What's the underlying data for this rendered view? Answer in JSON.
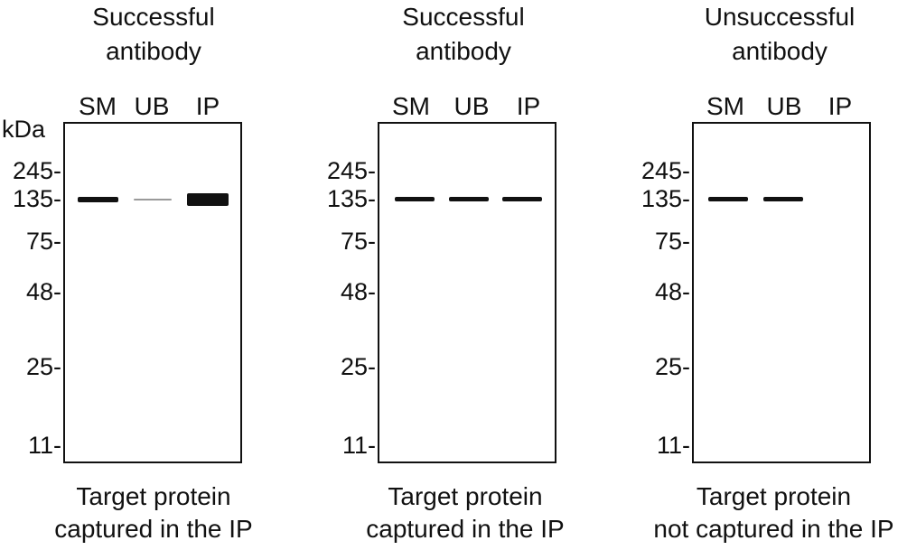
{
  "panels": [
    {
      "title": "Successful\nantibody",
      "lanes": [
        "SM",
        "UB",
        "IP"
      ],
      "kda_label": "kDa",
      "markers": [
        "245-",
        "135-",
        "75-",
        "48-",
        "25-",
        "11-"
      ],
      "bands": [
        {
          "lane": "SM",
          "marker": "135",
          "intensity": "strong"
        },
        {
          "lane": "UB",
          "marker": "135",
          "intensity": "faint"
        },
        {
          "lane": "IP",
          "marker": "135",
          "intensity": "very strong"
        }
      ],
      "caption": "Target protein\ncaptured in the IP"
    },
    {
      "title": "Successful\nantibody",
      "lanes": [
        "SM",
        "UB",
        "IP"
      ],
      "kda_label": "",
      "markers": [
        "245-",
        "135-",
        "75-",
        "48-",
        "25-",
        "11-"
      ],
      "bands": [
        {
          "lane": "SM",
          "marker": "135",
          "intensity": "strong"
        },
        {
          "lane": "UB",
          "marker": "135",
          "intensity": "strong"
        },
        {
          "lane": "IP",
          "marker": "135",
          "intensity": "strong"
        }
      ],
      "caption": "Target protein\ncaptured in the IP"
    },
    {
      "title": "Unsuccessful\nantibody",
      "lanes": [
        "SM",
        "UB",
        "IP"
      ],
      "kda_label": "",
      "markers": [
        "245-",
        "135-",
        "75-",
        "48-",
        "25-",
        "11-"
      ],
      "bands": [
        {
          "lane": "SM",
          "marker": "135",
          "intensity": "strong"
        },
        {
          "lane": "UB",
          "marker": "135",
          "intensity": "strong"
        }
      ],
      "caption": "Target protein\nnot captured in the IP"
    }
  ],
  "colors": {
    "ink": "#111111",
    "faint_band": "#9a9a9a",
    "background": "#ffffff"
  }
}
